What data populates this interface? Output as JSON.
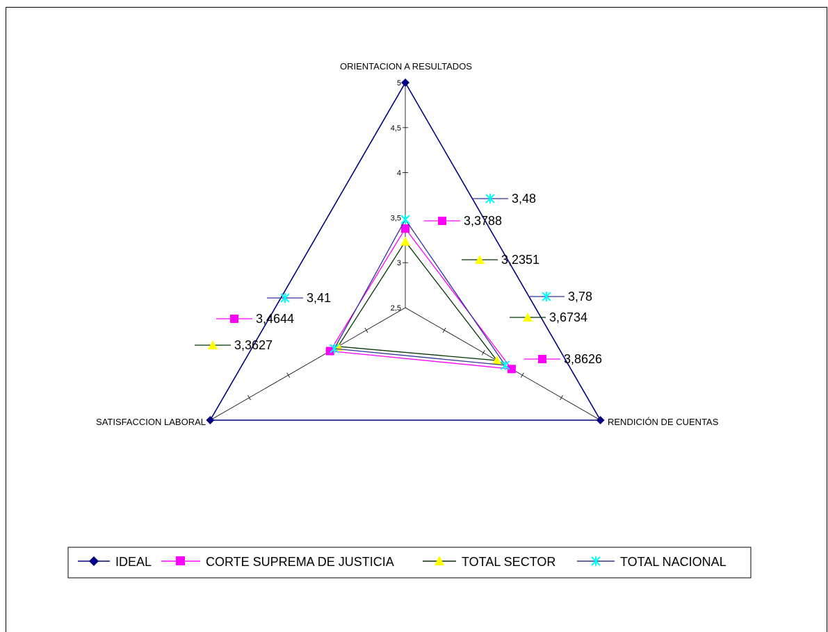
{
  "chart_data": {
    "type": "radar",
    "categories": [
      "ORIENTACION A RESULTADOS",
      "RENDICIÓN DE CUENTAS",
      "SATISFACCION LABORAL"
    ],
    "rlim": [
      2.5,
      5
    ],
    "ticks": [
      "2,5",
      "3",
      "3,5",
      "4",
      "4,5",
      "5"
    ],
    "tick_values": [
      2.5,
      3,
      3.5,
      4,
      4.5,
      5
    ],
    "series": [
      {
        "name": "IDEAL",
        "values": [
          5,
          5,
          5
        ],
        "line_color": "#000080",
        "marker_color": "#000080",
        "marker": "diamond",
        "labels": [
          "",
          "",
          ""
        ]
      },
      {
        "name": "CORTE SUPREMA DE JUSTICIA",
        "values": [
          3.3788,
          3.8626,
          3.4644
        ],
        "line_color": "#FF00FF",
        "marker_color": "#FF00FF",
        "marker": "square",
        "labels": [
          "3,3788",
          "3,8626",
          "3,4644"
        ]
      },
      {
        "name": "TOTAL SECTOR",
        "values": [
          3.2351,
          3.6734,
          3.3627
        ],
        "line_color": "#003300",
        "marker_color": "#FFFF00",
        "marker": "triangle",
        "labels": [
          "3,2351",
          "3,6734",
          "3,3627"
        ]
      },
      {
        "name": "TOTAL NACIONAL",
        "values": [
          3.48,
          3.78,
          3.41
        ],
        "line_color": "#333399",
        "marker_color": "#00FFFF",
        "marker": "x",
        "labels": [
          "3,48",
          "3,78",
          "3,41"
        ]
      }
    ],
    "legend": "bottom"
  }
}
